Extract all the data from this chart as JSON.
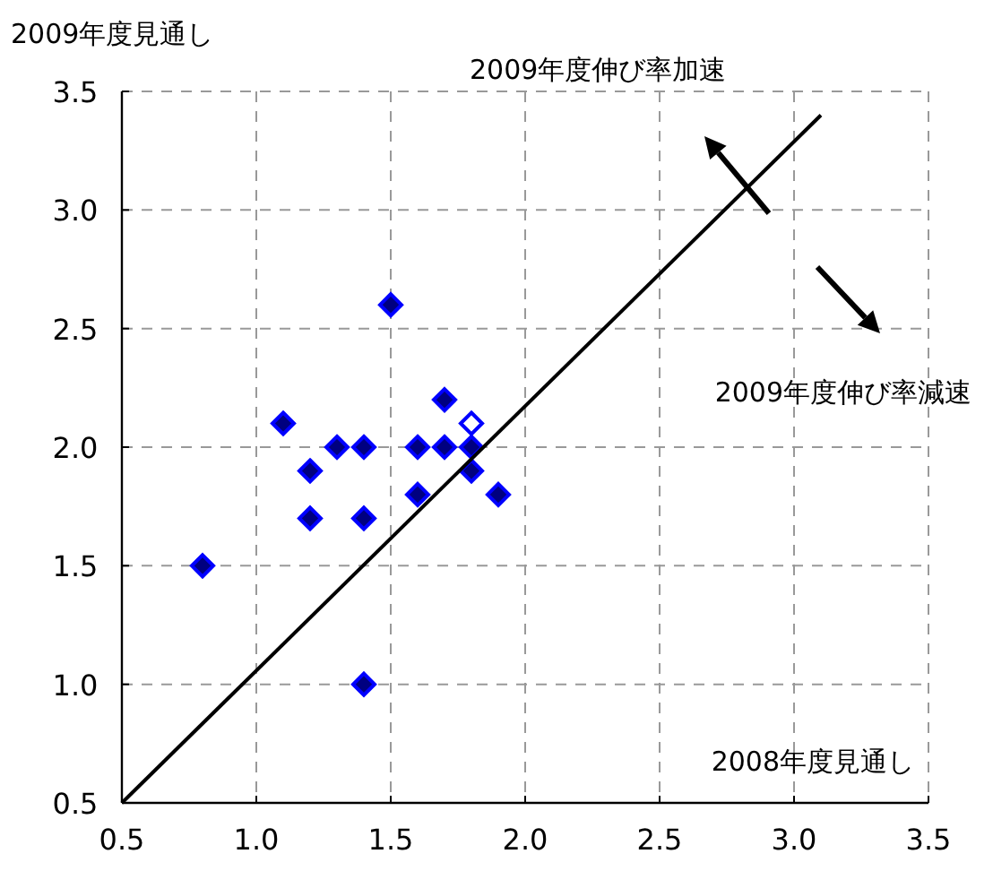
{
  "chart_data": {
    "type": "scatter",
    "ylabel": "2009年度見通し",
    "xlabel": "2008年度見通し",
    "annotations": [
      "2009年度伸び率加速",
      "2009年度伸び率減速"
    ],
    "xlim": [
      0.5,
      3.5
    ],
    "ylim": [
      0.5,
      3.5
    ],
    "xticks": [
      {
        "value": 0.5,
        "label": "0.5"
      },
      {
        "value": 1.0,
        "label": "1.0"
      },
      {
        "value": 1.5,
        "label": "1.5"
      },
      {
        "value": 2.0,
        "label": "2.0"
      },
      {
        "value": 2.5,
        "label": "2.5"
      },
      {
        "value": 3.0,
        "label": "3.0"
      },
      {
        "value": 3.5,
        "label": "3.5"
      }
    ],
    "yticks": [
      {
        "value": 0.5,
        "label": "0.5"
      },
      {
        "value": 1.0,
        "label": "1.0"
      },
      {
        "value": 1.5,
        "label": "1.5"
      },
      {
        "value": 2.0,
        "label": "2.0"
      },
      {
        "value": 2.5,
        "label": "2.5"
      },
      {
        "value": 3.0,
        "label": "3.0"
      },
      {
        "value": 3.5,
        "label": "3.5"
      }
    ],
    "grid": true,
    "marker": "diamond",
    "series": [
      {
        "color": "#000080",
        "x": [
          0.8,
          1.1,
          1.2,
          1.2,
          1.3,
          1.4,
          1.4,
          1.4,
          1.5,
          1.6,
          1.6,
          1.7,
          1.7,
          1.8,
          1.8,
          1.9
        ],
        "values": [
          1.5,
          2.1,
          1.9,
          1.7,
          2.0,
          2.0,
          1.7,
          1.0,
          2.6,
          2.0,
          1.8,
          2.2,
          2.0,
          2.0,
          1.9,
          1.8
        ]
      },
      {
        "color": "#ffffff",
        "x": [
          1.8
        ],
        "values": [
          2.1
        ]
      },
      {
        "type": "line",
        "color": "#000000",
        "marker": "none",
        "x": [
          0.5,
          3.1
        ],
        "values": [
          0.5,
          3.4
        ]
      }
    ]
  }
}
